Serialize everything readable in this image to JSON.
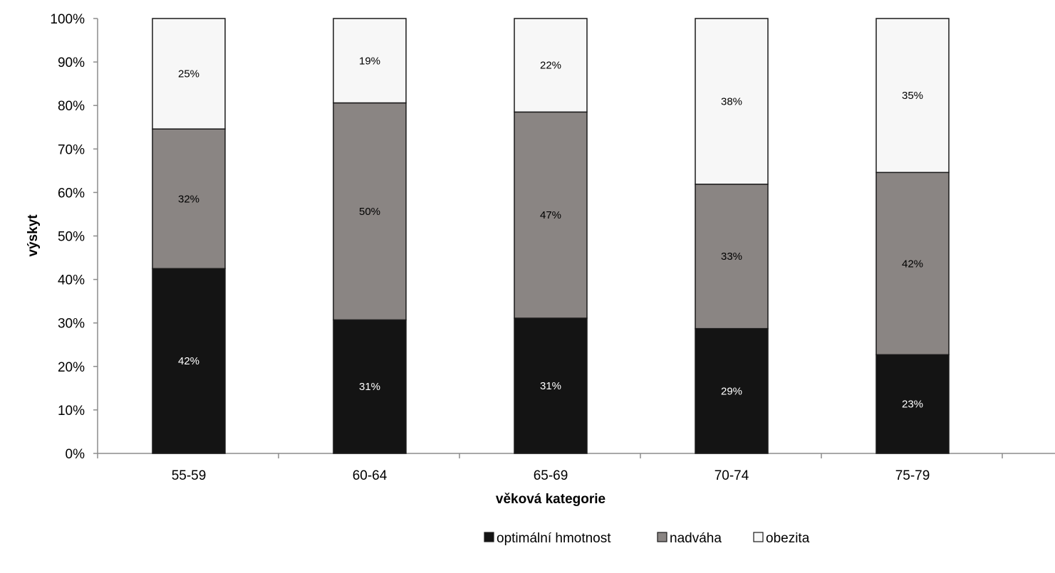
{
  "chart_data": {
    "type": "bar",
    "stacked": true,
    "percent_stacked": true,
    "title": "",
    "xlabel": "věková kategorie",
    "ylabel": "výskyt",
    "categories": [
      "55-59",
      "60-64",
      "65-69",
      "70-74",
      "75-79"
    ],
    "ylim": [
      0,
      100
    ],
    "y_ticks": [
      "0%",
      "10%",
      "20%",
      "30%",
      "40%",
      "50%",
      "60%",
      "70%",
      "80%",
      "90%",
      "100%"
    ],
    "grid": false,
    "legend_position": "bottom",
    "series": [
      {
        "name": "optimální hmotnost",
        "values": [
          42.5,
          30.7,
          31.1,
          28.7,
          22.7
        ],
        "labels": [
          "42%",
          "31%",
          "31%",
          "29%",
          "23%"
        ],
        "color": "#141414",
        "label_color": "#ffffff"
      },
      {
        "name": "nadváha",
        "values": [
          32.1,
          49.9,
          47.4,
          33.2,
          41.9
        ],
        "labels": [
          "32%",
          "50%",
          "47%",
          "33%",
          "42%"
        ],
        "color": "#8a8583",
        "label_color": "#000000"
      },
      {
        "name": "obezita",
        "values": [
          25.4,
          19.4,
          21.5,
          38.1,
          35.4
        ],
        "labels": [
          "25%",
          "19%",
          "22%",
          "38%",
          "35%"
        ],
        "color": "#f7f7f7",
        "label_color": "#000000"
      }
    ]
  }
}
